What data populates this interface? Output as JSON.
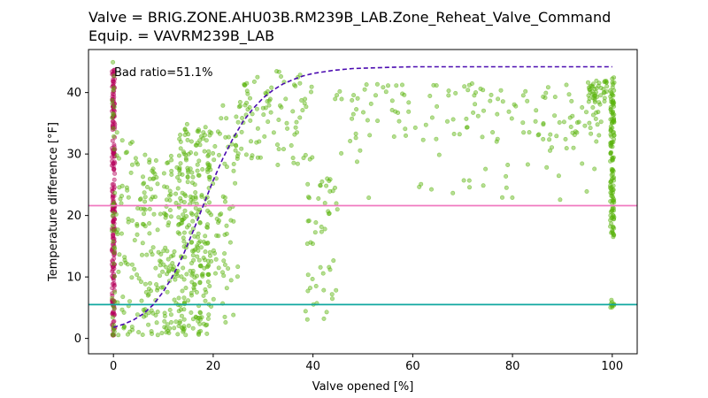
{
  "chart_data": {
    "type": "scatter",
    "title": "Valve = BRIG.ZONE.AHU03B.RM239B_LAB.Zone_Reheat_Valve_Command",
    "subtitle": "Equip. = VAVRM239B_LAB",
    "xlabel": "Valve opened [%]",
    "ylabel": "Temperature difference [°F]",
    "xlim": [
      -5,
      105
    ],
    "ylim": [
      -2.5,
      47
    ],
    "xticks": [
      0,
      20,
      40,
      60,
      80,
      100
    ],
    "yticks": [
      0,
      10,
      20,
      30,
      40
    ],
    "annotation": "Bad ratio=51.1%",
    "grid": false,
    "colors": {
      "points": "#5ab40e",
      "bad_points": "#b5005a",
      "fit_curve": "#4b0bb0",
      "upper_threshold": "#f07ac0",
      "lower_threshold": "#10a7a0"
    },
    "hlines": [
      {
        "y": 21.6,
        "color": "#f07ac0"
      },
      {
        "y": 5.5,
        "color": "#10a7a0"
      }
    ],
    "fit_curve": {
      "x": [
        0,
        2,
        4,
        6,
        8,
        10,
        12,
        14,
        16,
        18,
        20,
        22,
        24,
        26,
        28,
        30,
        32,
        34,
        36,
        38,
        40,
        44,
        48,
        55,
        60,
        70,
        80,
        90,
        100
      ],
      "y": [
        1.8,
        2.3,
        3.0,
        4.0,
        5.5,
        7.6,
        10.3,
        13.6,
        17.5,
        21.6,
        25.7,
        29.4,
        32.6,
        35.3,
        37.4,
        39.1,
        40.4,
        41.4,
        42.1,
        42.7,
        43.1,
        43.6,
        43.9,
        44.1,
        44.2,
        44.2,
        44.2,
        44.2,
        44.2
      ]
    },
    "clusters": [
      {
        "name": "",
        "x_range": [
          -0.3,
          0.3
        ],
        "y_range": [
          0.3,
          43.8
        ],
        "count": 220,
        "color": "#b5005a"
      },
      {
        "name": "",
        "x_range": [
          -0.3,
          0.3
        ],
        "y_range": [
          0.3,
          46.0
        ],
        "count": 40,
        "color": "#5ab40e"
      },
      {
        "name": "",
        "x_range": [
          99.6,
          100.4
        ],
        "y_range": [
          16.5,
          42.5
        ],
        "count": 140,
        "color": "#5ab40e"
      },
      {
        "name": "",
        "x_range": [
          99.6,
          100.4
        ],
        "y_range": [
          5.0,
          6.4
        ],
        "count": 10,
        "color": "#5ab40e"
      },
      {
        "name": "",
        "x_range": [
          13.0,
          19.5
        ],
        "y_range": [
          0.5,
          35.0
        ],
        "count": 260,
        "color": "#5ab40e"
      },
      {
        "name": "",
        "x_range": [
          5.0,
          13.0
        ],
        "y_range": [
          0.5,
          30.0
        ],
        "count": 160,
        "color": "#5ab40e"
      },
      {
        "name": "",
        "x_range": [
          0.5,
          5.0
        ],
        "y_range": [
          0.5,
          34.0
        ],
        "count": 60,
        "color": "#5ab40e"
      },
      {
        "name": "",
        "x_range": [
          19.5,
          25.0
        ],
        "y_range": [
          2.0,
          38.0
        ],
        "count": 70,
        "color": "#5ab40e"
      },
      {
        "name": "",
        "x_range": [
          25.0,
          40.0
        ],
        "y_range": [
          28.0,
          43.5
        ],
        "count": 90,
        "color": "#5ab40e"
      },
      {
        "name": "",
        "x_range": [
          38.5,
          45.0
        ],
        "y_range": [
          3.0,
          26.0
        ],
        "count": 50,
        "color": "#5ab40e"
      },
      {
        "name": "",
        "x_range": [
          44.0,
          98.0
        ],
        "y_range": [
          32.0,
          41.5
        ],
        "count": 140,
        "color": "#5ab40e"
      },
      {
        "name": "",
        "x_range": [
          44.0,
          98.0
        ],
        "y_range": [
          22.0,
          32.0
        ],
        "count": 30,
        "color": "#5ab40e"
      },
      {
        "name": "",
        "x_range": [
          95.0,
          99.0
        ],
        "y_range": [
          38.0,
          42.0
        ],
        "count": 40,
        "color": "#5ab40e"
      }
    ]
  }
}
